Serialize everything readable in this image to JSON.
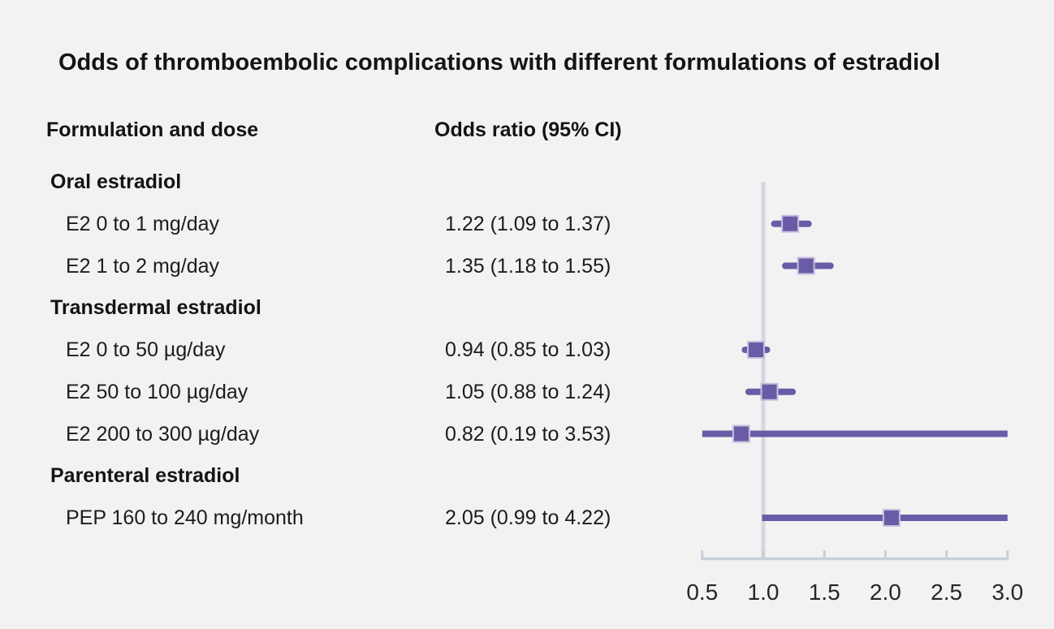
{
  "chart_data": {
    "type": "scatter",
    "subtype": "forest_plot",
    "title": "Odds of thromboembolic complications with different formulations of estradiol",
    "columns": {
      "formulation": "Formulation and dose",
      "odds_ratio": "Odds ratio (95% CI)"
    },
    "rows": [
      {
        "kind": "group",
        "label": "Oral estradiol"
      },
      {
        "kind": "item",
        "label": "E2 0 to 1 mg/day",
        "value": "1.22 (1.09 to 1.37)",
        "or": 1.22,
        "lo": 1.09,
        "hi": 1.37
      },
      {
        "kind": "item",
        "label": "E2 1 to 2 mg/day",
        "value": "1.35 (1.18 to 1.55)",
        "or": 1.35,
        "lo": 1.18,
        "hi": 1.55
      },
      {
        "kind": "group",
        "label": "Transdermal estradiol"
      },
      {
        "kind": "item",
        "label": "E2 0 to 50 µg/day",
        "value": "0.94 (0.85 to 1.03)",
        "or": 0.94,
        "lo": 0.85,
        "hi": 1.03
      },
      {
        "kind": "item",
        "label": "E2 50 to 100 µg/day",
        "value": "1.05 (0.88 to 1.24)",
        "or": 1.05,
        "lo": 0.88,
        "hi": 1.24
      },
      {
        "kind": "item",
        "label": "E2 200 to 300 µg/day",
        "value": "0.82 (0.19 to 3.53)",
        "or": 0.82,
        "lo": 0.19,
        "hi": 3.53
      },
      {
        "kind": "group",
        "label": "Parenteral estradiol"
      },
      {
        "kind": "item",
        "label": "PEP 160 to 240 mg/month",
        "value": "2.05 (0.99 to 4.22)",
        "or": 2.05,
        "lo": 0.99,
        "hi": 4.22
      }
    ],
    "axis": {
      "min": 0.5,
      "max": 3.0,
      "ticks": [
        "0.5",
        "1.0",
        "1.5",
        "2.0",
        "2.5",
        "3.0"
      ],
      "reference_line": 1.0
    },
    "legend": "none",
    "grid": "off",
    "colors": {
      "background": "#f2f2f2",
      "text": "#1c1c1c",
      "ci_line": "#6a5ba6",
      "marker_fill": "#6a5ba6",
      "marker_border": "#c7bedf",
      "reference_line": "#d3d8e1",
      "axis": "#c9cfd9",
      "tick_label": "#262626"
    }
  }
}
